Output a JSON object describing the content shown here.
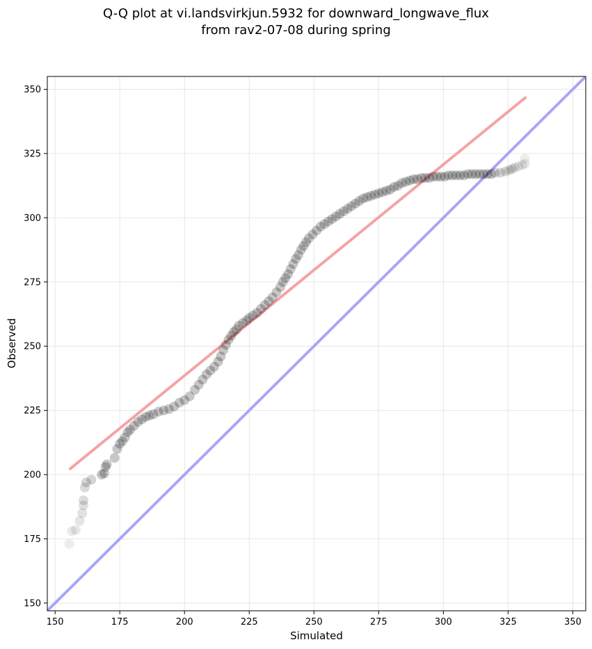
{
  "chart_data": {
    "type": "scatter",
    "title_line1": "Q-Q plot at vi.landsvirkjun.5932 for downward_longwave_flux",
    "title_line2": "from rav2-07-08 during spring",
    "xlabel": "Simulated",
    "ylabel": "Observed",
    "xlim": [
      147,
      355
    ],
    "ylim": [
      147,
      355
    ],
    "xticks": [
      150,
      175,
      200,
      225,
      250,
      275,
      300,
      325,
      350
    ],
    "yticks": [
      150,
      175,
      200,
      225,
      250,
      275,
      300,
      325,
      350
    ],
    "grid": true,
    "colors": {
      "points": "#000000",
      "fit_line": "#f4a3a6",
      "identity_line": "#a7a7f7"
    },
    "fit_line": {
      "x": [
        155.5,
        332
      ],
      "y": [
        202,
        347
      ]
    },
    "identity_line": {
      "x": [
        147,
        355
      ],
      "y": [
        147,
        355
      ]
    },
    "points": [
      [
        155.5,
        173
      ],
      [
        156.5,
        178
      ],
      [
        158,
        178.5
      ],
      [
        159.5,
        182
      ],
      [
        160.5,
        185
      ],
      [
        161,
        188
      ],
      [
        161,
        190
      ],
      [
        161.5,
        195
      ],
      [
        162,
        197
      ],
      [
        164,
        198
      ],
      [
        168,
        200
      ],
      [
        169,
        200.5
      ],
      [
        169.5,
        203
      ],
      [
        170,
        204
      ],
      [
        173,
        206.5
      ],
      [
        174,
        210
      ],
      [
        175,
        212
      ],
      [
        176,
        213
      ],
      [
        177,
        214.5
      ],
      [
        178,
        216.5
      ],
      [
        179,
        217.5
      ],
      [
        180.5,
        219
      ],
      [
        182,
        220.5
      ],
      [
        183.5,
        221.5
      ],
      [
        185,
        222.5
      ],
      [
        186.5,
        223
      ],
      [
        188,
        223.5
      ],
      [
        190,
        224.5
      ],
      [
        192,
        225
      ],
      [
        194,
        225.5
      ],
      [
        196,
        226.5
      ],
      [
        198,
        228
      ],
      [
        200,
        229
      ],
      [
        202,
        230.5
      ],
      [
        204,
        233
      ],
      [
        205.5,
        235
      ],
      [
        207,
        237
      ],
      [
        208.5,
        239
      ],
      [
        210,
        240.5
      ],
      [
        211.5,
        242
      ],
      [
        213,
        244
      ],
      [
        214,
        246
      ],
      [
        215,
        248.5
      ],
      [
        216,
        250.5
      ],
      [
        217,
        252.5
      ],
      [
        218,
        254
      ],
      [
        219,
        255.5
      ],
      [
        220,
        256.5
      ],
      [
        221,
        258
      ],
      [
        222.5,
        259
      ],
      [
        224,
        260
      ],
      [
        225,
        261
      ],
      [
        226.5,
        262
      ],
      [
        228,
        263
      ],
      [
        229.5,
        264.5
      ],
      [
        231,
        266
      ],
      [
        232.5,
        267.5
      ],
      [
        234,
        269
      ],
      [
        235.5,
        271
      ],
      [
        237,
        273
      ],
      [
        238,
        275
      ],
      [
        239,
        276.5
      ],
      [
        240,
        278
      ],
      [
        241,
        280
      ],
      [
        242,
        282
      ],
      [
        243,
        284
      ],
      [
        244,
        285.5
      ],
      [
        245,
        287.5
      ],
      [
        246,
        289
      ],
      [
        247,
        290.5
      ],
      [
        248,
        292
      ],
      [
        249.5,
        293.5
      ],
      [
        251,
        295
      ],
      [
        252.5,
        296.5
      ],
      [
        254,
        297.5
      ],
      [
        255.5,
        298.5
      ],
      [
        257,
        299.5
      ],
      [
        258.5,
        300.5
      ],
      [
        260,
        301.5
      ],
      [
        261.5,
        302.5
      ],
      [
        263,
        303.5
      ],
      [
        264.5,
        304.5
      ],
      [
        266,
        305.5
      ],
      [
        267.5,
        306.5
      ],
      [
        269,
        307.5
      ],
      [
        270.5,
        308
      ],
      [
        272,
        308.5
      ],
      [
        273.5,
        309
      ],
      [
        275,
        309.5
      ],
      [
        276.5,
        310
      ],
      [
        278,
        310.5
      ],
      [
        279.5,
        311
      ],
      [
        281,
        312
      ],
      [
        282.5,
        312.5
      ],
      [
        284,
        313.5
      ],
      [
        285.5,
        314
      ],
      [
        287,
        314.5
      ],
      [
        288.5,
        315
      ],
      [
        290,
        315
      ],
      [
        291.5,
        315.5
      ],
      [
        293,
        315.5
      ],
      [
        294.5,
        315.5
      ],
      [
        296,
        316
      ],
      [
        297.5,
        316
      ],
      [
        299,
        316
      ],
      [
        300.5,
        316
      ],
      [
        302,
        316.5
      ],
      [
        303.5,
        316.5
      ],
      [
        305,
        316.5
      ],
      [
        306.5,
        316.5
      ],
      [
        308,
        316.5
      ],
      [
        309.5,
        317
      ],
      [
        311,
        317
      ],
      [
        312.5,
        317
      ],
      [
        314,
        317
      ],
      [
        315.5,
        317
      ],
      [
        317,
        317
      ],
      [
        318.5,
        317
      ],
      [
        320,
        317.5
      ],
      [
        322,
        317.5
      ],
      [
        324,
        318
      ],
      [
        325.5,
        318.5
      ],
      [
        326.5,
        319
      ],
      [
        327.5,
        319.5
      ],
      [
        329,
        320
      ],
      [
        330.5,
        320.5
      ],
      [
        331.5,
        321
      ],
      [
        331.5,
        323
      ]
    ]
  }
}
